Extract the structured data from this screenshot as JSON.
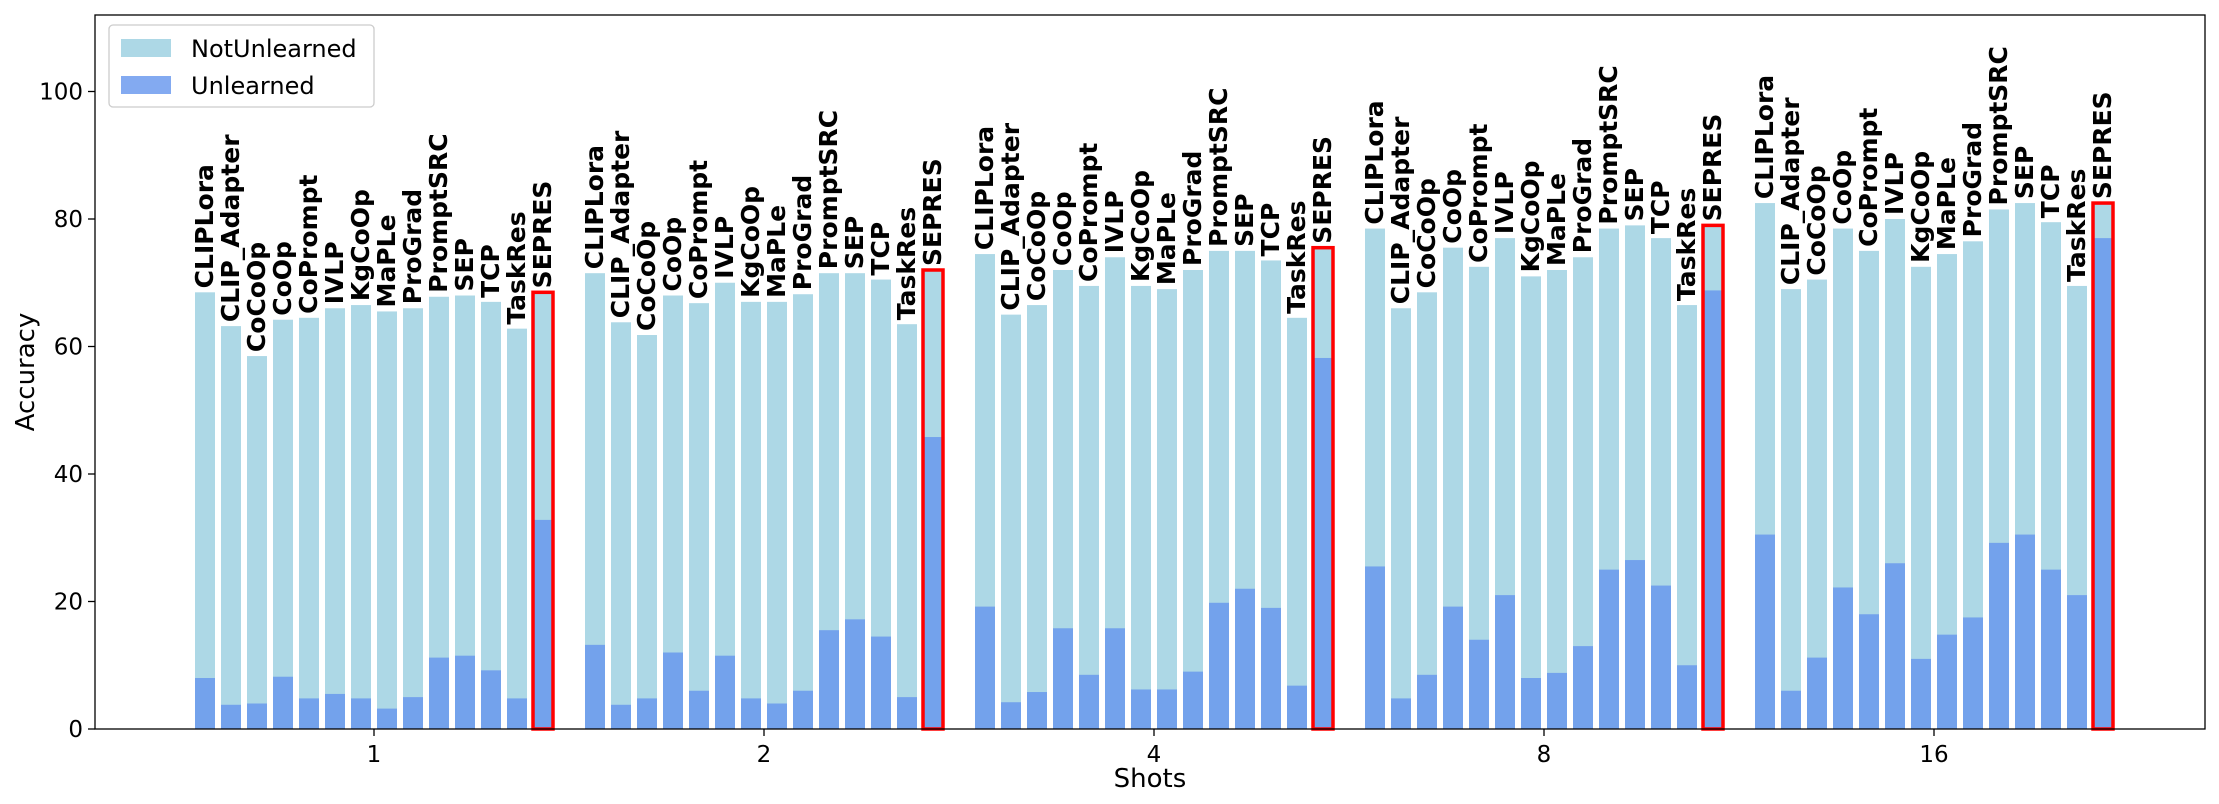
{
  "chart_data": {
    "type": "bar",
    "xlabel": "Shots",
    "ylabel": "Accuracy",
    "ylim": [
      0,
      112
    ],
    "yticks": [
      0,
      20,
      40,
      60,
      80,
      100
    ],
    "groups": [
      "1",
      "2",
      "4",
      "8",
      "16"
    ],
    "methods": [
      "CLIPLora",
      "CLIP_Adapter",
      "CoCoOp",
      "CoOp",
      "CoPrompt",
      "IVLP",
      "KgCoOp",
      "MaPLe",
      "ProGrad",
      "PromptSRC",
      "SEP",
      "TCP",
      "TaskRes",
      "SEPRES"
    ],
    "highlight_method": "SEPRES",
    "legend_position": "upper-left",
    "series": [
      {
        "name": "NotUnlearned",
        "color": "#add8e6",
        "values": [
          [
            68.5,
            63.2,
            58.5,
            64.2,
            64.5,
            66.0,
            66.5,
            65.5,
            66.0,
            67.8,
            68.0,
            67.0,
            62.8,
            68.5
          ],
          [
            71.5,
            63.8,
            61.8,
            68.0,
            66.8,
            70.0,
            67.0,
            67.0,
            68.2,
            71.5,
            71.5,
            70.5,
            63.5,
            72.0
          ],
          [
            74.5,
            65.0,
            66.5,
            72.0,
            69.5,
            74.0,
            69.5,
            69.0,
            72.0,
            75.0,
            75.0,
            73.5,
            64.5,
            75.5
          ],
          [
            78.5,
            66.0,
            68.5,
            75.5,
            72.5,
            77.0,
            71.0,
            72.0,
            74.0,
            78.5,
            79.0,
            77.0,
            66.5,
            79.0
          ],
          [
            82.5,
            69.0,
            70.5,
            78.5,
            75.0,
            80.0,
            72.5,
            74.5,
            76.5,
            81.5,
            82.5,
            79.5,
            69.5,
            82.5
          ]
        ]
      },
      {
        "name": "Unlearned",
        "color": "#6495ed",
        "values": [
          [
            8.0,
            3.8,
            4.0,
            8.2,
            4.8,
            5.5,
            4.8,
            3.2,
            5.0,
            11.2,
            11.5,
            9.2,
            4.8,
            32.8
          ],
          [
            13.2,
            3.8,
            4.8,
            12.0,
            6.0,
            11.5,
            4.8,
            4.0,
            6.0,
            15.5,
            17.2,
            14.5,
            5.0,
            45.8
          ],
          [
            19.2,
            4.2,
            5.8,
            15.8,
            8.5,
            15.8,
            6.2,
            6.2,
            9.0,
            19.8,
            22.0,
            19.0,
            6.8,
            58.2
          ],
          [
            25.5,
            4.8,
            8.5,
            19.2,
            14.0,
            21.0,
            8.0,
            8.8,
            13.0,
            25.0,
            26.5,
            22.5,
            10.0,
            68.8
          ],
          [
            30.5,
            6.0,
            11.2,
            22.2,
            18.0,
            26.0,
            11.0,
            14.8,
            17.5,
            29.2,
            30.5,
            25.0,
            21.0,
            77.0
          ]
        ]
      }
    ]
  }
}
